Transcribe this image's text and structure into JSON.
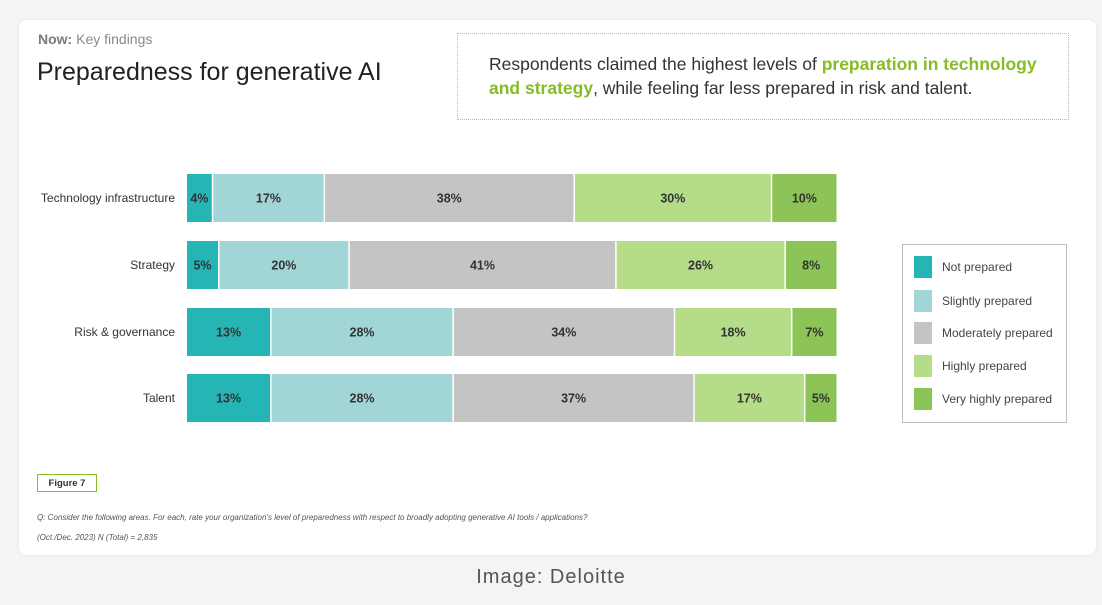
{
  "header": {
    "eyebrow_bold": "Now:",
    "eyebrow_text": " Key findings",
    "title": "Preparedness for generative AI"
  },
  "callout": {
    "before": "Respondents claimed the highest levels of ",
    "highlight": "preparation in technology and strategy",
    "after": ", while feeling far less prepared in risk and talent."
  },
  "chart_data": {
    "type": "bar",
    "orientation": "horizontal",
    "stacked": true,
    "categories": [
      "Technology infrastructure",
      "Strategy",
      "Risk & governance",
      "Talent"
    ],
    "series": [
      {
        "name": "Not prepared",
        "color": "#26b5b5",
        "values": [
          4,
          5,
          13,
          13
        ]
      },
      {
        "name": "Slightly prepared",
        "color": "#a2d5d5",
        "values": [
          17,
          20,
          28,
          28
        ]
      },
      {
        "name": "Moderately prepared",
        "color": "#c4c4c4",
        "values": [
          38,
          41,
          34,
          37
        ]
      },
      {
        "name": "Highly prepared",
        "color": "#b5dc88",
        "values": [
          30,
          26,
          18,
          17
        ]
      },
      {
        "name": "Very highly prepared",
        "color": "#8cc457",
        "values": [
          10,
          8,
          7,
          5
        ]
      }
    ],
    "value_suffix": "%",
    "legend_position": "right",
    "grid": false
  },
  "footer": {
    "figure_label": "Figure 7",
    "question": "Q: Consider the following areas. For each, rate your organization's level of preparedness with respect to broadly adopting generative AI tools / applications?",
    "sample": "(Oct./Dec. 2023) N (Total) = 2,835"
  },
  "credit": "Image: Deloitte"
}
